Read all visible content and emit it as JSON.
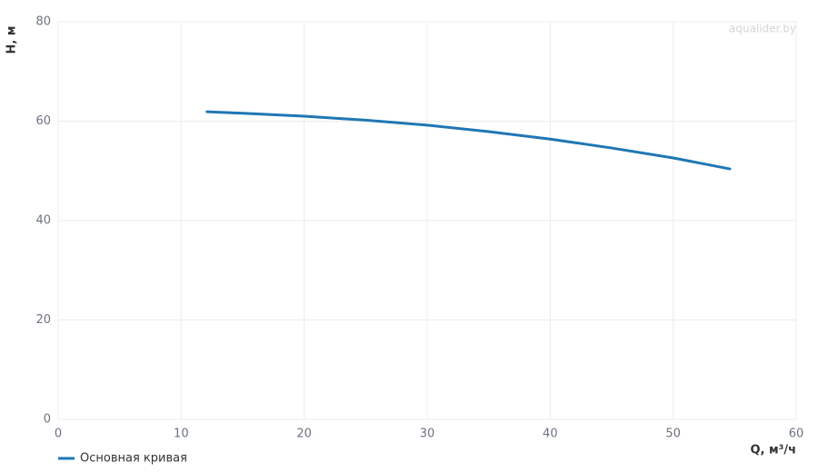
{
  "chart_data": {
    "type": "line",
    "watermark": "aqualider.by",
    "x_label": "Q, м³/ч",
    "y_label": "H, м",
    "x": [
      12.1,
      15,
      20,
      25,
      30,
      35,
      40,
      45,
      50,
      54.6
    ],
    "series": [
      {
        "name": "Основная кривая",
        "color": "#1f77b4",
        "values": [
          61.9,
          61.6,
          61.0,
          60.2,
          59.2,
          57.9,
          56.4,
          54.6,
          52.6,
          50.4
        ]
      }
    ],
    "xlim": [
      0,
      60
    ],
    "xticks": [
      0,
      10,
      20,
      30,
      40,
      50,
      60
    ],
    "ylim": [
      0,
      80
    ],
    "yticks": [
      0,
      20,
      40,
      60,
      80
    ],
    "grid": true,
    "legend": "bottom-left"
  }
}
